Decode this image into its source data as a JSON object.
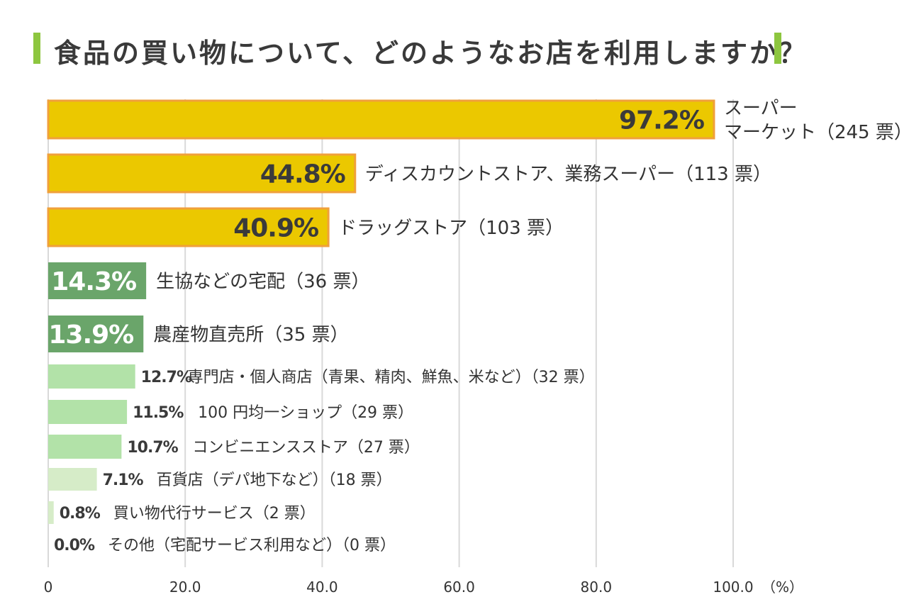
{
  "title": "食品の買い物について、どのようなお店を利用しますか？",
  "colors": {
    "title_accent": "#8dc63f",
    "gold": "#ebc800",
    "gold_border": "#f0a03c",
    "dark_green": "#6aa56a",
    "light_green": "#b2e2a8",
    "pale_green": "#d6ecc8",
    "grid": "#d9d9d9",
    "text": "#333333"
  },
  "chart_data": {
    "type": "bar",
    "orientation": "horizontal",
    "title": "食品の買い物について、どのようなお店を利用しますか？",
    "unit_label": "（%）",
    "xlim": [
      0,
      100
    ],
    "ticks": [
      "0",
      "20.0",
      "40.0",
      "60.0",
      "80.0",
      "100.0"
    ],
    "tick_values": [
      0,
      20,
      40,
      60,
      80,
      100
    ],
    "categories": [
      {
        "value": 97.2,
        "value_label": "97.2%",
        "lines": [
          "スーパー",
          "マーケット（245 票）"
        ],
        "votes": 245,
        "style": "gold"
      },
      {
        "value": 44.8,
        "value_label": "44.8%",
        "lines": [
          "ディスカウントストア、業務スーパー（113 票）"
        ],
        "votes": 113,
        "style": "gold"
      },
      {
        "value": 40.9,
        "value_label": "40.9%",
        "lines": [
          "ドラッグストア（103 票）"
        ],
        "votes": 103,
        "style": "gold"
      },
      {
        "value": 14.3,
        "value_label": "14.3%",
        "lines": [
          "生協などの宅配（36 票）"
        ],
        "votes": 36,
        "style": "dark"
      },
      {
        "value": 13.9,
        "value_label": "13.9%",
        "lines": [
          "農産物直売所（35 票）"
        ],
        "votes": 35,
        "style": "dark"
      },
      {
        "value": 12.7,
        "value_label": "12.7%",
        "lines": [
          "専門店・個人商店（青果、精肉、鮮魚、米など）（32 票）"
        ],
        "votes": 32,
        "style": "light"
      },
      {
        "value": 11.5,
        "value_label": "11.5%",
        "lines": [
          "100 円均一ショップ（29 票）"
        ],
        "votes": 29,
        "style": "light"
      },
      {
        "value": 10.7,
        "value_label": "10.7%",
        "lines": [
          "コンビニエンスストア（27 票）"
        ],
        "votes": 27,
        "style": "light"
      },
      {
        "value": 7.1,
        "value_label": "7.1%",
        "lines": [
          "百貨店（デパ地下など）（18 票）"
        ],
        "votes": 18,
        "style": "pale"
      },
      {
        "value": 0.8,
        "value_label": "0.8%",
        "lines": [
          "買い物代行サービス（2 票）"
        ],
        "votes": 2,
        "style": "pale"
      },
      {
        "value": 0.0,
        "value_label": "0.0%",
        "lines": [
          "その他（宅配サービス利用など）（0 票）"
        ],
        "votes": 0,
        "style": "pale"
      }
    ]
  }
}
